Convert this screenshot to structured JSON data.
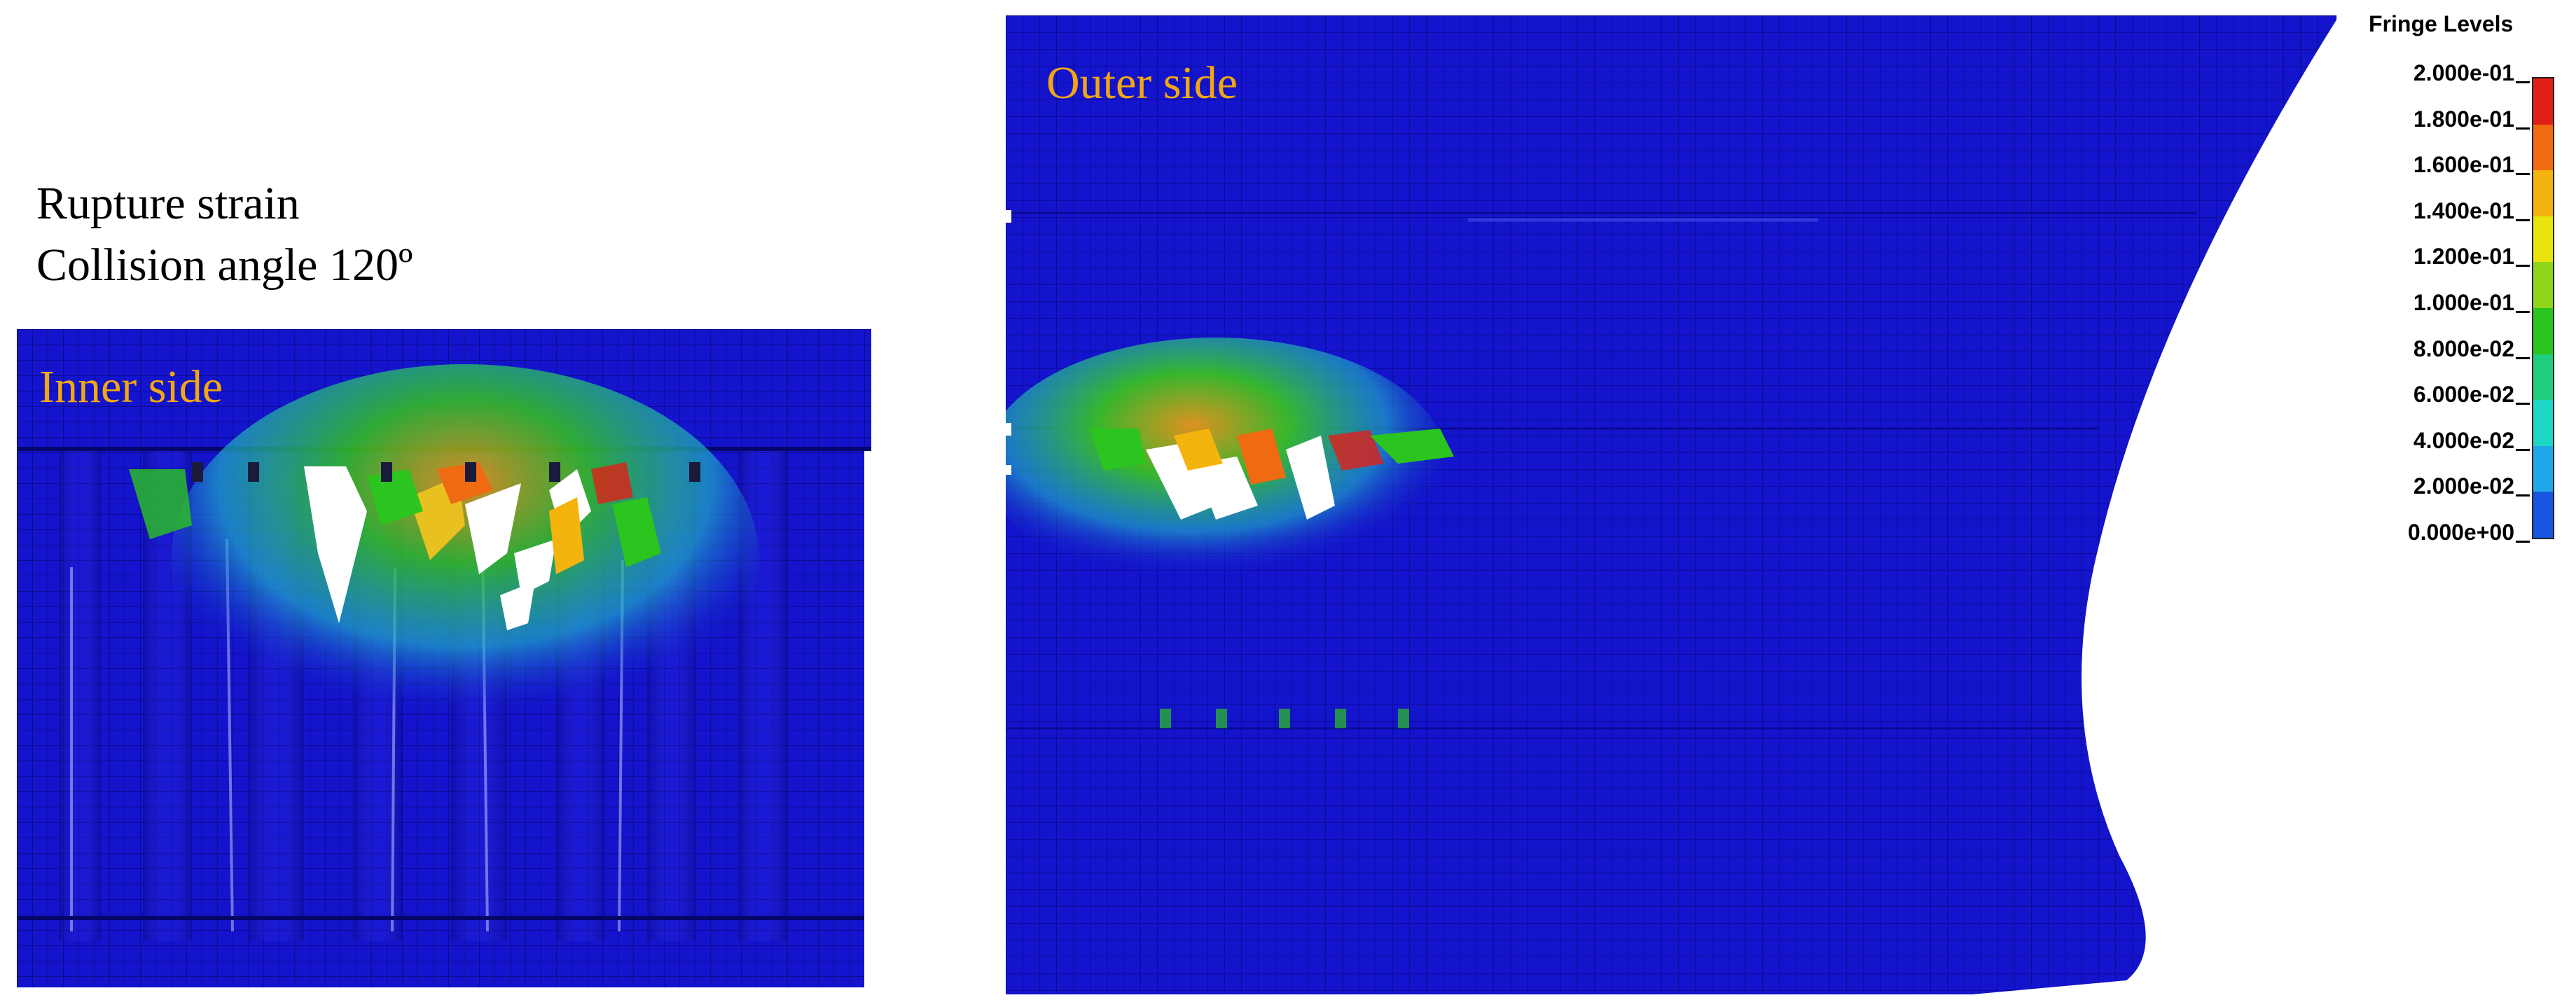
{
  "caption": {
    "line1": "Rupture strain",
    "line2": "Collision angle 120º"
  },
  "views": {
    "inner": {
      "label": "Inner side"
    },
    "outer": {
      "label": "Outer side"
    }
  },
  "legend": {
    "title": "Fringe Levels",
    "levels": [
      "2.000e-01",
      "1.800e-01",
      "1.600e-01",
      "1.400e-01",
      "1.200e-01",
      "1.000e-01",
      "8.000e-02",
      "6.000e-02",
      "4.000e-02",
      "2.000e-02",
      "0.000e+00"
    ],
    "colors": [
      "#e01f17",
      "#f06a12",
      "#f5b30e",
      "#e8e40c",
      "#8fd61b",
      "#2cc41f",
      "#1fcf7e",
      "#1ed8c5",
      "#1fa9e8",
      "#1a55e0"
    ]
  },
  "colors": {
    "mesh_base": "#1212c8",
    "mesh_dark": "#0a0a98",
    "label_accent": "#f2a712"
  }
}
